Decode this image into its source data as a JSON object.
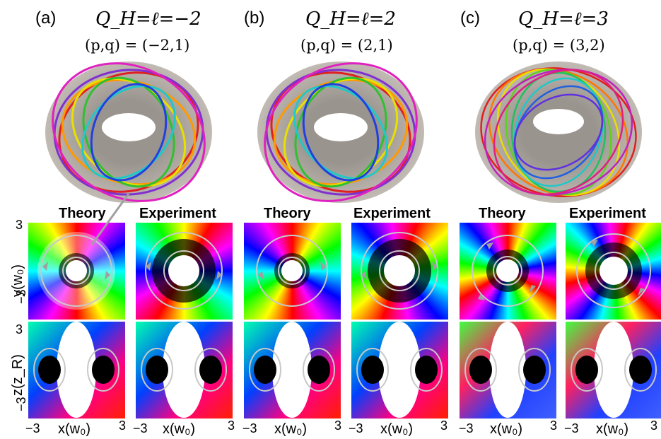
{
  "panels": [
    {
      "label": "(a)",
      "title": "Q_H=ℓ=−2",
      "pq": "(p,q) = (−2,1)"
    },
    {
      "label": "(b)",
      "title": "Q_H=ℓ=2",
      "pq": "(p,q) = (2,1)"
    },
    {
      "label": "(c)",
      "title": "Q_H=ℓ=3",
      "pq": "(p,q) = (3,2)"
    }
  ],
  "column_titles": {
    "theory": "Theory",
    "experiment": "Experiment"
  },
  "axes": {
    "y_label": "y(w₀)",
    "z_label": "z(z_R)",
    "x_label": "x(w₀)",
    "tick_pos": "3",
    "tick_neg": "−3"
  },
  "colors": {
    "torus_shell": "#b8b0a8",
    "ring": "#c8c8c8",
    "arrow": "#a0a0a0"
  }
}
